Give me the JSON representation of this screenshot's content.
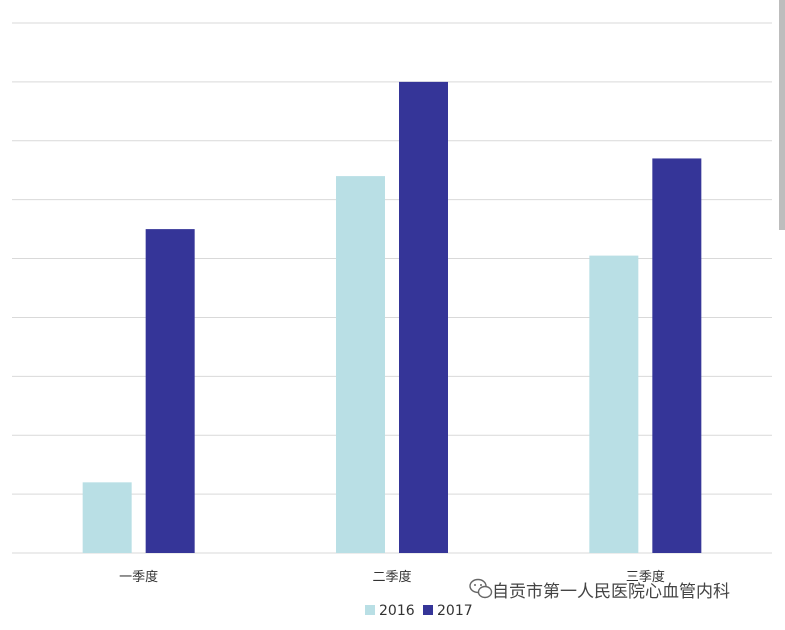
{
  "chart_data": {
    "type": "bar",
    "categories": [
      "一季度",
      "二季度",
      "三季度"
    ],
    "series": [
      {
        "name": "2016",
        "values": [
          1.2,
          6.4,
          5.05
        ]
      },
      {
        "name": "2017",
        "values": [
          5.5,
          8.0,
          6.7
        ]
      }
    ],
    "title": "",
    "xlabel": "",
    "ylabel": "",
    "ylim": [
      0,
      9
    ],
    "grid": true,
    "y_tick_labels_visible": false,
    "legend_position": "bottom-center",
    "colors": {
      "2016": "#b9dfe5",
      "2017": "#353598"
    }
  },
  "watermark": {
    "text": "自贡市第一人民医院心血管内科",
    "icon": "wechat-icon"
  }
}
